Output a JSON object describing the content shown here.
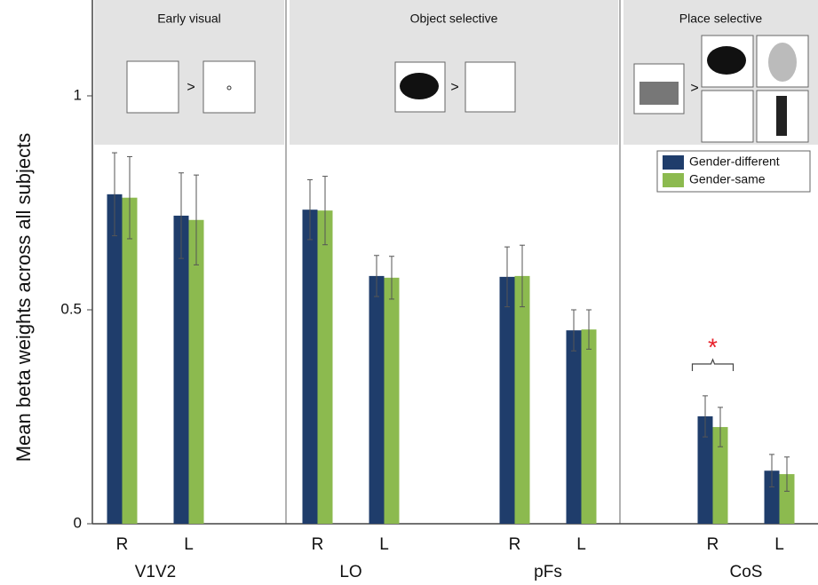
{
  "chart_data": {
    "type": "bar",
    "ylabel": "Mean beta weights across all subjects",
    "panels": [
      {
        "title": "Early visual",
        "symbol": ">"
      },
      {
        "title": "Object selective",
        "symbol": ">"
      },
      {
        "title": "Place selective",
        "symbol": ">"
      }
    ],
    "groups": [
      {
        "label": "V1V2",
        "categories": [
          "R",
          "L"
        ]
      },
      {
        "label": "LO",
        "categories": [
          "R",
          "L"
        ]
      },
      {
        "label": "pFs",
        "categories": [
          "R",
          "L"
        ]
      },
      {
        "label": "CoS",
        "categories": [
          "R",
          "L"
        ]
      }
    ],
    "series": [
      {
        "name": "Gender-different",
        "color": "#1f3d6b",
        "values": [
          0.77,
          0.72,
          0.734,
          0.579,
          0.577,
          0.452,
          0.251,
          0.124
        ],
        "errors": [
          0.097,
          0.1,
          0.07,
          0.048,
          0.07,
          0.048,
          0.048,
          0.038
        ]
      },
      {
        "name": "Gender-same",
        "color": "#8cba4f",
        "values": [
          0.762,
          0.71,
          0.732,
          0.575,
          0.579,
          0.454,
          0.226,
          0.116
        ],
        "errors": [
          0.096,
          0.105,
          0.08,
          0.05,
          0.072,
          0.046,
          0.046,
          0.04
        ]
      }
    ],
    "annotation": {
      "text": "*",
      "color": "#e8202a"
    },
    "ylim": [
      0,
      1.224
    ],
    "yticks": [
      0,
      0.5,
      1
    ],
    "legend": "upper right"
  }
}
